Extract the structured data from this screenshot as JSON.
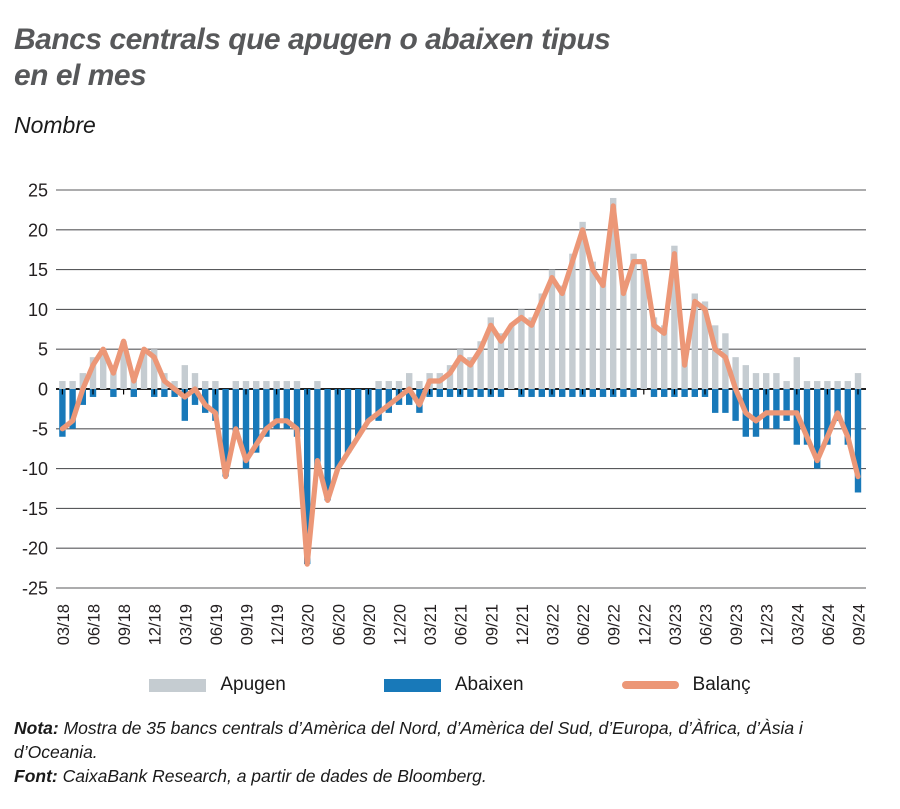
{
  "header": {
    "title_line1": "Bancs centrals que apugen o abaixen tipus",
    "title_line2": "en el mes",
    "subtitle": "Nombre"
  },
  "legend": [
    {
      "label": "Apugen",
      "color": "#C5CCD1",
      "type": "rect"
    },
    {
      "label": "Abaixen",
      "color": "#1879B9",
      "type": "rect"
    },
    {
      "label": "Balanç",
      "color": "#EC9777",
      "type": "line"
    }
  ],
  "notes": {
    "nota_label": "Nota:",
    "nota_text": " Mostra de 35 bancs centrals d’Amèrica del Nord, d’Amèrica del Sud, d’Europa, d’Àfrica, d’Àsia i d’Oceania.",
    "font_label": "Font:",
    "font_text": " CaixaBank Research, a partir de dades de Bloomberg."
  },
  "chart_data": {
    "type": "bar",
    "title": "Bancs centrals que apugen o abaixen tipus en el mes",
    "ylabel": "Nombre",
    "xlabel": "",
    "ylim": [
      -25,
      25
    ],
    "ytick_step": 5,
    "yticks": [
      25,
      20,
      15,
      10,
      5,
      0,
      -5,
      -10,
      -15,
      -20,
      -25
    ],
    "grid": "horizontal",
    "legend_position": "bottom",
    "xtick_every": 3,
    "x": [
      "03/18",
      "04/18",
      "05/18",
      "06/18",
      "07/18",
      "08/18",
      "09/18",
      "10/18",
      "11/18",
      "12/18",
      "01/19",
      "02/19",
      "03/19",
      "04/19",
      "05/19",
      "06/19",
      "07/19",
      "08/19",
      "09/19",
      "10/19",
      "11/19",
      "12/19",
      "01/20",
      "02/20",
      "03/20",
      "04/20",
      "05/20",
      "06/20",
      "07/20",
      "08/20",
      "09/20",
      "10/20",
      "11/20",
      "12/20",
      "01/21",
      "02/21",
      "03/21",
      "04/21",
      "05/21",
      "06/21",
      "07/21",
      "08/21",
      "09/21",
      "10/21",
      "11/21",
      "12/21",
      "01/22",
      "02/22",
      "03/22",
      "04/22",
      "05/22",
      "06/22",
      "07/22",
      "08/22",
      "09/22",
      "10/22",
      "11/22",
      "12/22",
      "01/23",
      "02/23",
      "03/23",
      "04/23",
      "05/23",
      "06/23",
      "07/23",
      "08/23",
      "09/23",
      "10/23",
      "11/23",
      "12/23",
      "01/24",
      "02/24",
      "03/24",
      "04/24",
      "05/24",
      "06/24",
      "07/24",
      "08/24",
      "09/24"
    ],
    "tick_labels": [
      "03/18",
      "06/18",
      "09/18",
      "12/18",
      "03/19",
      "06/19",
      "09/19",
      "12/19",
      "03/20",
      "06/20",
      "09/20",
      "12/20",
      "03/21",
      "06/21",
      "09/21",
      "12/21",
      "03/22",
      "06/22",
      "09/22",
      "12/22",
      "03/23",
      "06/23",
      "09/23",
      "12/23",
      "03/24",
      "06/24",
      "09/24"
    ],
    "series": [
      {
        "name": "Apugen",
        "type": "bar",
        "color": "#C5CCD1",
        "values": [
          1,
          1,
          2,
          4,
          5,
          3,
          6,
          2,
          5,
          5,
          2,
          1,
          3,
          2,
          1,
          1,
          0,
          1,
          1,
          1,
          1,
          1,
          1,
          1,
          0,
          1,
          0,
          0,
          0,
          0,
          0,
          1,
          1,
          1,
          2,
          1,
          2,
          2,
          3,
          5,
          4,
          6,
          9,
          7,
          8,
          10,
          9,
          12,
          15,
          13,
          17,
          21,
          16,
          14,
          24,
          13,
          17,
          16,
          9,
          8,
          18,
          4,
          12,
          11,
          8,
          7,
          4,
          3,
          2,
          2,
          2,
          1,
          4,
          1,
          1,
          1,
          1,
          1,
          2
        ]
      },
      {
        "name": "Abaixen",
        "type": "bar",
        "color": "#1879B9",
        "values": [
          -6,
          -5,
          -2,
          -1,
          0,
          -1,
          0,
          -1,
          0,
          -1,
          -1,
          -1,
          -4,
          -2,
          -3,
          -4,
          -11,
          -6,
          -10,
          -8,
          -6,
          -5,
          -5,
          -6,
          -22,
          -10,
          -14,
          -10,
          -8,
          -6,
          -4,
          -4,
          -3,
          -2,
          -2,
          -3,
          -1,
          -1,
          -1,
          -1,
          -1,
          -1,
          -1,
          -1,
          0,
          -1,
          -1,
          -1,
          -1,
          -1,
          -1,
          -1,
          -1,
          -1,
          -1,
          -1,
          -1,
          0,
          -1,
          -1,
          -1,
          -1,
          -1,
          -1,
          -3,
          -3,
          -4,
          -6,
          -6,
          -5,
          -5,
          -4,
          -7,
          -7,
          -10,
          -7,
          -4,
          -7,
          -13
        ]
      },
      {
        "name": "Balanç",
        "type": "line",
        "color": "#EC9777",
        "values": [
          -5,
          -4,
          0,
          3,
          5,
          2,
          6,
          1,
          5,
          4,
          1,
          0,
          -1,
          0,
          -2,
          -3,
          -11,
          -5,
          -9,
          -7,
          -5,
          -4,
          -4,
          -5,
          -22,
          -9,
          -14,
          -10,
          -8,
          -6,
          -4,
          -3,
          -2,
          -1,
          0,
          -2,
          1,
          1,
          2,
          4,
          3,
          5,
          8,
          6,
          8,
          9,
          8,
          11,
          14,
          12,
          16,
          20,
          15,
          13,
          23,
          12,
          16,
          16,
          8,
          7,
          17,
          3,
          11,
          10,
          5,
          4,
          0,
          -3,
          -4,
          -3,
          -3,
          -3,
          -3,
          -6,
          -9,
          -6,
          -3,
          -6,
          -11
        ]
      }
    ]
  }
}
